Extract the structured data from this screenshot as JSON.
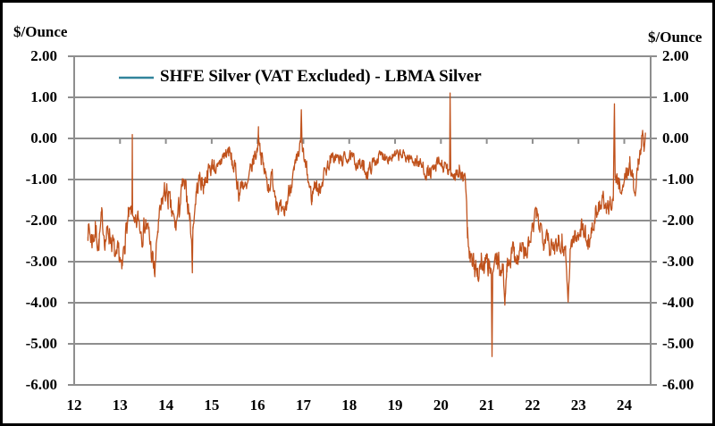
{
  "frame": {
    "border_color": "#000000",
    "background": "#FFFFFF"
  },
  "chart_data": {
    "type": "line",
    "title": "",
    "ylabel_left": "$/Ounce",
    "ylabel_right": "$/Ounce",
    "legend_label": "SHFE Silver (VAT Excluded) - LBMA Silver",
    "legend_position": "top-inside",
    "grid": "horizontal",
    "xlim": [
      2012,
      2024.575
    ],
    "ylim": [
      -6,
      2
    ],
    "y_ticks": [
      2,
      1,
      0,
      -1,
      -2,
      -3,
      -4,
      -5,
      -6
    ],
    "y_tick_labels": [
      "2.00",
      "1.00",
      "0.00",
      "-1.00",
      "-2.00",
      "-3.00",
      "-4.00",
      "-5.00",
      "-6.00"
    ],
    "x_tick_years": [
      2012,
      2013,
      2014,
      2015,
      2016,
      2017,
      2018,
      2019,
      2020,
      2021,
      2022,
      2023,
      2024
    ],
    "x_tick_labels": [
      "12",
      "13",
      "14",
      "15",
      "16",
      "17",
      "18",
      "19",
      "20",
      "21",
      "22",
      "23",
      "24"
    ],
    "line_color": "#C0521C",
    "legend_swatch_color": "#31849B",
    "grid_color": "#8E8E8E",
    "text_color": "#000000",
    "noise_seed": 7,
    "series": [
      {
        "name": "SHFE Silver (VAT Excluded) - LBMA Silver",
        "anchors": [
          [
            2012.3,
            -2.15,
            0.4
          ],
          [
            2012.38,
            -2.45,
            0.45
          ],
          [
            2012.46,
            -2.25,
            0.5
          ],
          [
            2012.54,
            -2.55,
            0.4
          ],
          [
            2012.6,
            -1.95,
            0.35
          ],
          [
            2012.68,
            -2.45,
            0.4
          ],
          [
            2012.76,
            -2.25,
            0.45
          ],
          [
            2012.84,
            -2.55,
            0.4
          ],
          [
            2012.92,
            -3.05,
            0.4
          ],
          [
            2012.98,
            -2.8,
            0.5
          ],
          [
            2013.04,
            -3.3,
            0.3
          ],
          [
            2013.1,
            -2.45,
            0.45
          ],
          [
            2013.18,
            -1.95,
            0.35
          ],
          [
            2013.24,
            -1.8,
            0.25
          ],
          [
            2013.262,
            -1.8,
            0.05
          ],
          [
            2013.268,
            0.1,
            0.02
          ],
          [
            2013.274,
            -1.85,
            0.05
          ],
          [
            2013.32,
            -2.25,
            0.4
          ],
          [
            2013.4,
            -1.95,
            0.35
          ],
          [
            2013.48,
            -2.3,
            0.4
          ],
          [
            2013.56,
            -2.05,
            0.35
          ],
          [
            2013.64,
            -2.4,
            0.4
          ],
          [
            2013.72,
            -3.05,
            0.45
          ],
          [
            2013.76,
            -3.3,
            0.3
          ],
          [
            2013.82,
            -2.25,
            0.4
          ],
          [
            2013.9,
            -1.7,
            0.35
          ],
          [
            2013.97,
            -1.25,
            0.35
          ],
          [
            2014.05,
            -1.45,
            0.4
          ],
          [
            2014.13,
            -1.85,
            0.4
          ],
          [
            2014.21,
            -2.15,
            0.35
          ],
          [
            2014.29,
            -1.7,
            0.4
          ],
          [
            2014.37,
            -1.15,
            0.35
          ],
          [
            2014.45,
            -1.35,
            0.35
          ],
          [
            2014.52,
            -1.9,
            0.35
          ],
          [
            2014.565,
            -2.6,
            0.1
          ],
          [
            2014.578,
            -3.25,
            0.05
          ],
          [
            2014.59,
            -2.2,
            0.15
          ],
          [
            2014.66,
            -1.35,
            0.35
          ],
          [
            2014.74,
            -0.95,
            0.3
          ],
          [
            2014.82,
            -1.15,
            0.35
          ],
          [
            2014.9,
            -0.85,
            0.3
          ],
          [
            2014.97,
            -0.75,
            0.3
          ],
          [
            2015.05,
            -0.6,
            0.3
          ],
          [
            2015.13,
            -0.85,
            0.3
          ],
          [
            2015.21,
            -0.5,
            0.3
          ],
          [
            2015.29,
            -0.4,
            0.3
          ],
          [
            2015.37,
            -0.3,
            0.3
          ],
          [
            2015.45,
            -0.6,
            0.3
          ],
          [
            2015.53,
            -0.85,
            0.3
          ],
          [
            2015.6,
            -1.35,
            0.35
          ],
          [
            2015.68,
            -1.05,
            0.3
          ],
          [
            2015.76,
            -1.3,
            0.3
          ],
          [
            2015.84,
            -0.85,
            0.3
          ],
          [
            2015.92,
            -0.5,
            0.3
          ],
          [
            2015.99,
            -0.3,
            0.28
          ],
          [
            2016.02,
            0.2,
            0.25
          ],
          [
            2016.08,
            -0.45,
            0.3
          ],
          [
            2016.16,
            -0.85,
            0.3
          ],
          [
            2016.24,
            -1.15,
            0.3
          ],
          [
            2016.32,
            -0.95,
            0.3
          ],
          [
            2016.4,
            -1.35,
            0.35
          ],
          [
            2016.48,
            -1.75,
            0.35
          ],
          [
            2016.56,
            -1.95,
            0.35
          ],
          [
            2016.64,
            -1.55,
            0.35
          ],
          [
            2016.72,
            -1.1,
            0.3
          ],
          [
            2016.8,
            -0.85,
            0.3
          ],
          [
            2016.88,
            -0.5,
            0.28
          ],
          [
            2016.94,
            -0.1,
            0.2
          ],
          [
            2016.955,
            0.68,
            0.05
          ],
          [
            2016.97,
            -0.2,
            0.2
          ],
          [
            2017.04,
            -0.65,
            0.3
          ],
          [
            2017.12,
            -1.1,
            0.32
          ],
          [
            2017.18,
            -1.45,
            0.32
          ],
          [
            2017.26,
            -1.05,
            0.3
          ],
          [
            2017.34,
            -1.3,
            0.3
          ],
          [
            2017.42,
            -0.95,
            0.28
          ],
          [
            2017.5,
            -0.75,
            0.25
          ],
          [
            2017.58,
            -0.55,
            0.22
          ],
          [
            2017.7,
            -0.45,
            0.22
          ],
          [
            2017.82,
            -0.55,
            0.22
          ],
          [
            2017.94,
            -0.45,
            0.2
          ],
          [
            2018.06,
            -0.5,
            0.22
          ],
          [
            2018.18,
            -0.6,
            0.22
          ],
          [
            2018.3,
            -0.7,
            0.25
          ],
          [
            2018.4,
            -0.85,
            0.22
          ],
          [
            2018.52,
            -0.6,
            0.22
          ],
          [
            2018.64,
            -0.45,
            0.2
          ],
          [
            2018.76,
            -0.4,
            0.2
          ],
          [
            2018.88,
            -0.45,
            0.2
          ],
          [
            2019.0,
            -0.45,
            0.2
          ],
          [
            2019.12,
            -0.4,
            0.2
          ],
          [
            2019.24,
            -0.45,
            0.2
          ],
          [
            2019.36,
            -0.5,
            0.22
          ],
          [
            2019.48,
            -0.55,
            0.22
          ],
          [
            2019.6,
            -0.7,
            0.25
          ],
          [
            2019.72,
            -0.85,
            0.25
          ],
          [
            2019.84,
            -0.8,
            0.25
          ],
          [
            2019.96,
            -0.6,
            0.25
          ],
          [
            2020.06,
            -0.7,
            0.25
          ],
          [
            2020.14,
            -0.8,
            0.25
          ],
          [
            2020.19,
            -0.8,
            0.1
          ],
          [
            2020.2,
            1.1,
            0.02
          ],
          [
            2020.215,
            -0.85,
            0.1
          ],
          [
            2020.3,
            -0.85,
            0.28
          ],
          [
            2020.4,
            -0.8,
            0.3
          ],
          [
            2020.48,
            -1.0,
            0.28
          ],
          [
            2020.54,
            -1.15,
            0.25
          ],
          [
            2020.58,
            -2.2,
            0.35
          ],
          [
            2020.64,
            -2.95,
            0.4
          ],
          [
            2020.72,
            -3.1,
            0.45
          ],
          [
            2020.8,
            -3.25,
            0.45
          ],
          [
            2020.88,
            -3.0,
            0.45
          ],
          [
            2020.96,
            -3.15,
            0.45
          ],
          [
            2021.04,
            -3.05,
            0.4
          ],
          [
            2021.1,
            -3.4,
            0.2
          ],
          [
            2021.115,
            -5.3,
            0.03
          ],
          [
            2021.13,
            -3.3,
            0.2
          ],
          [
            2021.2,
            -2.95,
            0.4
          ],
          [
            2021.28,
            -3.1,
            0.4
          ],
          [
            2021.36,
            -3.3,
            0.35
          ],
          [
            2021.395,
            -4.0,
            0.08
          ],
          [
            2021.44,
            -3.05,
            0.35
          ],
          [
            2021.52,
            -2.85,
            0.35
          ],
          [
            2021.6,
            -2.7,
            0.35
          ],
          [
            2021.68,
            -2.95,
            0.4
          ],
          [
            2021.76,
            -2.6,
            0.35
          ],
          [
            2021.84,
            -2.85,
            0.35
          ],
          [
            2021.92,
            -2.6,
            0.35
          ],
          [
            2022.0,
            -2.25,
            0.35
          ],
          [
            2022.08,
            -1.85,
            0.35
          ],
          [
            2022.16,
            -2.1,
            0.35
          ],
          [
            2022.24,
            -2.4,
            0.35
          ],
          [
            2022.32,
            -2.2,
            0.35
          ],
          [
            2022.4,
            -2.8,
            0.4
          ],
          [
            2022.48,
            -2.6,
            0.4
          ],
          [
            2022.56,
            -2.4,
            0.35
          ],
          [
            2022.64,
            -2.55,
            0.35
          ],
          [
            2022.72,
            -2.7,
            0.3
          ],
          [
            2022.775,
            -4.0,
            0.06
          ],
          [
            2022.82,
            -2.7,
            0.35
          ],
          [
            2022.9,
            -2.4,
            0.35
          ],
          [
            2022.97,
            -2.45,
            0.35
          ],
          [
            2023.05,
            -2.1,
            0.35
          ],
          [
            2023.13,
            -2.3,
            0.35
          ],
          [
            2023.21,
            -2.55,
            0.35
          ],
          [
            2023.29,
            -2.2,
            0.35
          ],
          [
            2023.37,
            -1.95,
            0.35
          ],
          [
            2023.45,
            -1.7,
            0.3
          ],
          [
            2023.53,
            -1.45,
            0.3
          ],
          [
            2023.61,
            -1.85,
            0.3
          ],
          [
            2023.69,
            -1.6,
            0.3
          ],
          [
            2023.76,
            -1.4,
            0.25
          ],
          [
            2023.785,
            0.85,
            0.03
          ],
          [
            2023.8,
            -0.95,
            0.25
          ],
          [
            2023.88,
            -1.1,
            0.3
          ],
          [
            2023.96,
            -1.2,
            0.3
          ],
          [
            2024.04,
            -0.9,
            0.3
          ],
          [
            2024.12,
            -0.6,
            0.28
          ],
          [
            2024.2,
            -1.1,
            0.3
          ],
          [
            2024.24,
            -1.4,
            0.2
          ],
          [
            2024.3,
            -0.6,
            0.28
          ],
          [
            2024.36,
            -0.3,
            0.25
          ],
          [
            2024.4,
            0.3,
            0.2
          ],
          [
            2024.43,
            -0.2,
            0.2
          ],
          [
            2024.46,
            0.15,
            0.1
          ]
        ]
      }
    ]
  }
}
